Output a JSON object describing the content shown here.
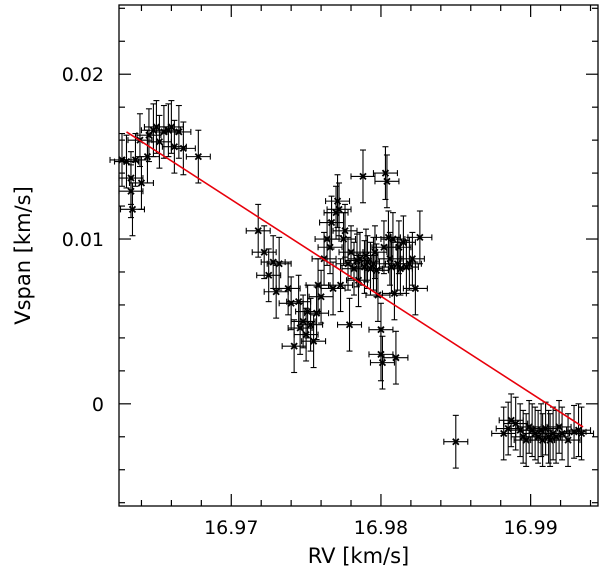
{
  "chart_data": {
    "type": "scatter",
    "title": "",
    "xlabel": "RV [km/s]",
    "ylabel": "Vspan [km/s]",
    "xlim": [
      16.9625,
      16.9945
    ],
    "ylim": [
      -0.0062,
      0.0242
    ],
    "x_ticks": [
      16.97,
      16.98,
      16.99
    ],
    "x_tick_labels": [
      "16.97",
      "16.98",
      "16.99"
    ],
    "y_ticks": [
      0,
      0.01,
      0.02
    ],
    "y_tick_labels": [
      "0",
      "0.01",
      "0.02"
    ],
    "x_minor_step": 0.002,
    "y_minor_step": 0.002,
    "x_error": 0.0008,
    "y_error": 0.0016,
    "fit_line": {
      "x": [
        16.963,
        16.9935
      ],
      "y": [
        0.0165,
        -0.0014
      ],
      "color": "#e8000b"
    },
    "points": [
      [
        16.9627,
        0.0148
      ],
      [
        16.963,
        0.0147
      ],
      [
        16.9633,
        0.0129
      ],
      [
        16.9633,
        0.0137
      ],
      [
        16.9634,
        0.0118
      ],
      [
        16.9636,
        0.0148
      ],
      [
        16.9639,
        0.016
      ],
      [
        16.964,
        0.0134
      ],
      [
        16.9644,
        0.015
      ],
      [
        16.9645,
        0.0163
      ],
      [
        16.9648,
        0.0166
      ],
      [
        16.965,
        0.0168
      ],
      [
        16.9652,
        0.0159
      ],
      [
        16.9655,
        0.0165
      ],
      [
        16.9658,
        0.0166
      ],
      [
        16.966,
        0.0168
      ],
      [
        16.9662,
        0.0156
      ],
      [
        16.9665,
        0.0165
      ],
      [
        16.9668,
        0.0155
      ],
      [
        16.9678,
        0.015
      ],
      [
        16.9718,
        0.0105
      ],
      [
        16.9722,
        0.0092
      ],
      [
        16.9725,
        0.0078
      ],
      [
        16.9728,
        0.0086
      ],
      [
        16.973,
        0.0068
      ],
      [
        16.9732,
        0.0085
      ],
      [
        16.9738,
        0.007
      ],
      [
        16.974,
        0.0061
      ],
      [
        16.9742,
        0.0035
      ],
      [
        16.9745,
        0.0062
      ],
      [
        16.9746,
        0.0046
      ],
      [
        16.9748,
        0.005
      ],
      [
        16.975,
        0.0042
      ],
      [
        16.9751,
        0.0056
      ],
      [
        16.9753,
        0.0048
      ],
      [
        16.9755,
        0.0038
      ],
      [
        16.9757,
        0.0055
      ],
      [
        16.9758,
        0.0072
      ],
      [
        16.976,
        0.0065
      ],
      [
        16.9762,
        0.0088
      ],
      [
        16.9764,
        0.01
      ],
      [
        16.9766,
        0.0095
      ],
      [
        16.9767,
        0.011
      ],
      [
        16.9768,
        0.007
      ],
      [
        16.977,
        0.0116
      ],
      [
        16.9771,
        0.0123
      ],
      [
        16.9772,
        0.0118
      ],
      [
        16.9773,
        0.0072
      ],
      [
        16.9775,
        0.01
      ],
      [
        16.9776,
        0.0105
      ],
      [
        16.9778,
        0.0085
      ],
      [
        16.9779,
        0.0048
      ],
      [
        16.978,
        0.0092
      ],
      [
        16.9782,
        0.0082
      ],
      [
        16.9784,
        0.0087
      ],
      [
        16.9785,
        0.0075
      ],
      [
        16.9786,
        0.0088
      ],
      [
        16.9788,
        0.0138
      ],
      [
        16.9789,
        0.0083
      ],
      [
        16.979,
        0.009
      ],
      [
        16.9791,
        0.0086
      ],
      [
        16.9793,
        0.0082
      ],
      [
        16.9795,
        0.0085
      ],
      [
        16.9796,
        0.0092
      ],
      [
        16.9797,
        0.0081
      ],
      [
        16.9798,
        0.0066
      ],
      [
        16.98,
        0.0045
      ],
      [
        16.98,
        0.003
      ],
      [
        16.9801,
        0.0025
      ],
      [
        16.9802,
        0.0095
      ],
      [
        16.9803,
        0.014
      ],
      [
        16.9804,
        0.0135
      ],
      [
        16.9805,
        0.0101
      ],
      [
        16.9806,
        0.0088
      ],
      [
        16.9807,
        0.0083
      ],
      [
        16.9808,
        0.01
      ],
      [
        16.9809,
        0.0067
      ],
      [
        16.981,
        0.0028
      ],
      [
        16.9811,
        0.0085
      ],
      [
        16.9812,
        0.0095
      ],
      [
        16.9813,
        0.0082
      ],
      [
        16.9815,
        0.0098
      ],
      [
        16.9817,
        0.0083
      ],
      [
        16.9819,
        0.0085
      ],
      [
        16.9821,
        0.0088
      ],
      [
        16.9823,
        0.007
      ],
      [
        16.9826,
        0.0101
      ],
      [
        16.985,
        -0.0023
      ],
      [
        16.9882,
        -0.0018
      ],
      [
        16.9885,
        -0.0015
      ],
      [
        16.9887,
        -0.001
      ],
      [
        16.989,
        -0.0012
      ],
      [
        16.9893,
        -0.0016
      ],
      [
        16.9895,
        -0.002
      ],
      [
        16.9897,
        -0.0022
      ],
      [
        16.9899,
        -0.0014
      ],
      [
        16.9901,
        -0.0016
      ],
      [
        16.9903,
        -0.0018
      ],
      [
        16.9905,
        -0.002
      ],
      [
        16.9907,
        -0.0016
      ],
      [
        16.9908,
        -0.0022
      ],
      [
        16.991,
        -0.0015
      ],
      [
        16.9912,
        -0.002
      ],
      [
        16.9913,
        -0.0022
      ],
      [
        16.9915,
        -0.0018
      ],
      [
        16.9917,
        -0.002
      ],
      [
        16.9919,
        -0.0014
      ],
      [
        16.9921,
        -0.0018
      ],
      [
        16.9925,
        -0.0022
      ],
      [
        16.9929,
        -0.0017
      ],
      [
        16.9932,
        -0.0016
      ],
      [
        16.9934,
        -0.0018
      ]
    ]
  }
}
